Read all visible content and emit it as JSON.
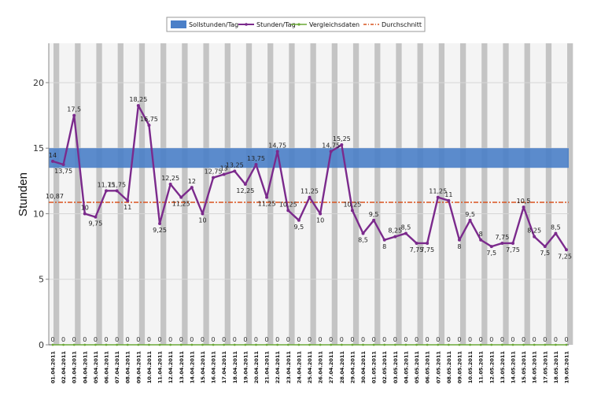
{
  "chart_data": {
    "type": "line",
    "ylabel": "Stunden",
    "ylim": [
      0,
      23
    ],
    "yticks": [
      0,
      5,
      10,
      15,
      20
    ],
    "grid": true,
    "legend_position": "top-center",
    "categories": [
      "01.04.2011",
      "02.04.2011",
      "03.04.2011",
      "04.04.2011",
      "05.04.2011",
      "06.04.2011",
      "07.04.2011",
      "08.04.2011",
      "09.04.2011",
      "10.04.2011",
      "11.04.2011",
      "12.04.2011",
      "13.04.2011",
      "14.04.2011",
      "15.04.2011",
      "16.04.2011",
      "17.04.2011",
      "18.04.2011",
      "19.04.2011",
      "20.04.2011",
      "21.04.2011",
      "22.04.2011",
      "23.04.2011",
      "24.04.2011",
      "25.04.2011",
      "26.04.2011",
      "27.04.2011",
      "28.04.2011",
      "29.04.2011",
      "30.04.2011",
      "01.05.2011",
      "02.05.2011",
      "03.05.2011",
      "04.05.2011",
      "05.05.2011",
      "06.05.2011",
      "07.05.2011",
      "08.05.2011",
      "09.05.2011",
      "10.05.2011",
      "11.05.2011",
      "12.05.2011",
      "13.05.2011",
      "14.05.2011",
      "15.05.2011",
      "16.05.2011",
      "17.05.2011",
      "18.05.2011",
      "19.05.2011"
    ],
    "series": [
      {
        "name": "Sollstunden/Tag",
        "kind": "band",
        "range": [
          13.5,
          15
        ],
        "color": "#4a7fc8"
      },
      {
        "name": "Stunden/Tag",
        "kind": "line",
        "color": "#7b2a8c",
        "values": [
          14,
          13.75,
          17.5,
          10,
          9.75,
          11.75,
          11.75,
          11,
          18.25,
          16.75,
          9.25,
          12.25,
          11.25,
          12,
          10,
          12.75,
          13,
          13.25,
          12.25,
          13.75,
          11.25,
          14.75,
          10.25,
          9.5,
          11.25,
          10,
          14.75,
          15.25,
          10.25,
          8.5,
          9.5,
          8,
          8.25,
          8.5,
          7.75,
          7.75,
          11.25,
          11,
          8,
          9.5,
          8,
          7.5,
          7.75,
          7.75,
          10.5,
          8.25,
          7.5,
          8.5,
          7.25
        ],
        "labels": [
          "14",
          "13,75",
          "17,5",
          "10",
          "9,75",
          "11,75",
          "11,75",
          "11",
          "18,25",
          "16,75",
          "9,25",
          "12,25",
          "11,25",
          "12",
          "10",
          "12,75",
          "13",
          "13,25",
          "12,25",
          "13,75",
          "11,25",
          "14,75",
          "10,25",
          "9,5",
          "11,25",
          "10",
          "14,75",
          "15,25",
          "10,25",
          "8,5",
          "9,5",
          "8",
          "8,25",
          "8,5",
          "7,75",
          "7,75",
          "11,25",
          "11",
          "8",
          "9,5",
          "8",
          "7,5",
          "7,75",
          "7,75",
          "10,5",
          "8,25",
          "7,5",
          "8,5",
          "7,25"
        ]
      },
      {
        "name": "Vergleichsdaten",
        "kind": "line",
        "color": "#6aa836",
        "values": [
          0,
          0,
          0,
          0,
          0,
          0,
          0,
          0,
          0,
          0,
          0,
          0,
          0,
          0,
          0,
          0,
          0,
          0,
          0,
          0,
          0,
          0,
          0,
          0,
          0,
          0,
          0,
          0,
          0,
          0,
          0,
          0,
          0,
          0,
          0,
          0,
          0,
          0,
          0,
          0,
          0,
          0,
          0,
          0,
          0,
          0,
          0,
          0,
          0
        ],
        "labels": [
          "0",
          "0",
          "0",
          "0",
          "0",
          "0",
          "0",
          "0",
          "0",
          "0",
          "0",
          "0",
          "0",
          "0",
          "0",
          "0",
          "0",
          "0",
          "0",
          "0",
          "0",
          "0",
          "0",
          "0",
          "0",
          "0",
          "0",
          "0",
          "0",
          "0",
          "0",
          "0",
          "0",
          "0",
          "0",
          "0",
          "0",
          "0",
          "0",
          "0",
          "0",
          "0",
          "0",
          "0",
          "0",
          "0",
          "0",
          "0",
          "0"
        ]
      },
      {
        "name": "Durchschnitt",
        "kind": "hline",
        "value": 10.87,
        "label": "10,87",
        "color": "#d9531e"
      }
    ]
  }
}
